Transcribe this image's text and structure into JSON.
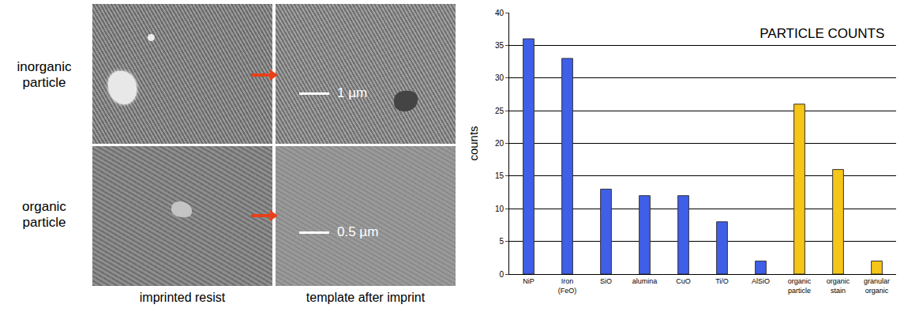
{
  "figure": {
    "row_labels": [
      "inorganic particle",
      "organic particle"
    ],
    "column_labels": [
      "imprinted resist",
      "template after imprint"
    ],
    "scale_bars": [
      "1 µm",
      "0.5 µm"
    ]
  },
  "chart_data": {
    "type": "bar",
    "title": "PARTICLE COUNTS",
    "y_label": "counts",
    "categories": [
      "NiP",
      "Iron (FeO)",
      "SiO",
      "alumina",
      "CuO",
      "Ti/O",
      "AlSiO",
      "organic particle",
      "organic stain",
      "granular organic"
    ],
    "values": [
      36,
      33,
      13,
      12,
      12,
      8,
      2,
      26,
      16,
      2
    ],
    "colors": [
      "#3f5fe8",
      "#3f5fe8",
      "#3f5fe8",
      "#3f5fe8",
      "#3f5fe8",
      "#3f5fe8",
      "#3f5fe8",
      "#f5c518",
      "#f5c518",
      "#f5c518"
    ],
    "ylim": [
      0,
      40
    ],
    "yticks": [
      0,
      5,
      10,
      15,
      20,
      25,
      30,
      35,
      40
    ],
    "grid": true
  }
}
